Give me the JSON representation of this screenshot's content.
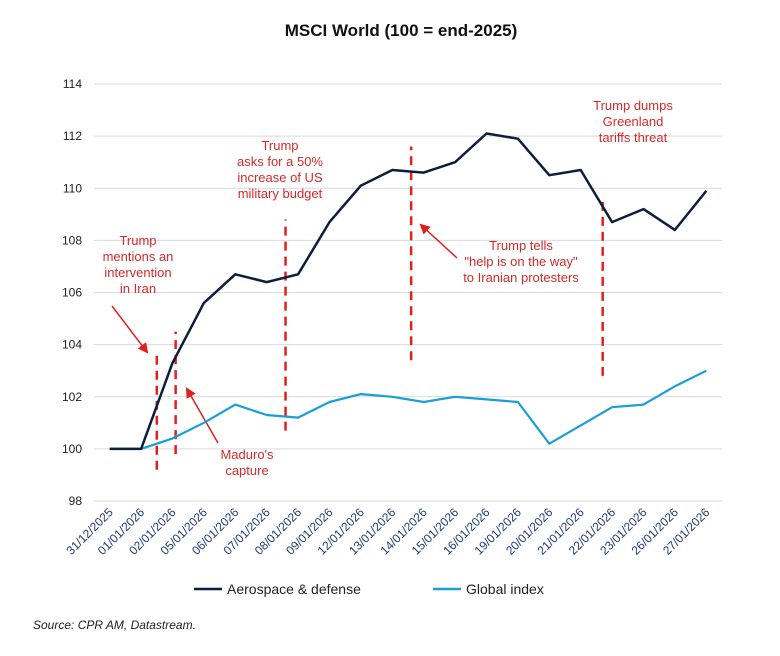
{
  "chart_data": {
    "type": "line",
    "title": "MSCI World (100 = end-2025)",
    "xlabel": "",
    "ylabel": "",
    "ylim": [
      98,
      114
    ],
    "yticks": [
      98,
      100,
      102,
      104,
      106,
      108,
      110,
      112,
      114
    ],
    "grid": true,
    "legend_position": "bottom",
    "categories": [
      "31/12/2025",
      "01/01/2026",
      "02/01/2026",
      "05/01/2026",
      "06/01/2026",
      "07/01/2026",
      "08/01/2026",
      "09/01/2026",
      "12/01/2026",
      "13/01/2026",
      "14/01/2026",
      "15/01/2026",
      "16/01/2026",
      "19/01/2026",
      "20/01/2026",
      "21/01/2026",
      "22/01/2026",
      "23/01/2026",
      "26/01/2026",
      "27/01/2026"
    ],
    "series": [
      {
        "name": "Aerospace & defense",
        "color": "#0d1e3d",
        "values": [
          100.0,
          100.0,
          103.3,
          105.6,
          106.7,
          106.4,
          106.7,
          108.7,
          110.1,
          110.7,
          110.6,
          111.0,
          112.1,
          111.9,
          110.5,
          110.7,
          108.7,
          109.2,
          108.4,
          109.9
        ]
      },
      {
        "name": "Global index",
        "color": "#199ed6",
        "values": [
          100.0,
          100.0,
          100.4,
          101.0,
          101.7,
          101.3,
          101.2,
          101.8,
          102.1,
          102.0,
          101.8,
          102.0,
          101.9,
          101.8,
          100.2,
          100.9,
          101.6,
          101.7,
          102.4,
          103.0
        ]
      }
    ],
    "events": [
      {
        "x_index": 1.5,
        "y_from": 99.2,
        "y_to": 103.7,
        "lines": [
          "Trump",
          "mentions an",
          "intervention",
          "in Iran"
        ]
      },
      {
        "x_index": 2.1,
        "y_from": 99.8,
        "y_to": 104.5,
        "lines": [
          "Maduro's",
          "capture"
        ]
      },
      {
        "x_index": 5.6,
        "y_from": 100.7,
        "y_to": 108.8,
        "lines": [
          "Trump",
          "asks for a 50%",
          "increase of US",
          "military budget"
        ]
      },
      {
        "x_index": 9.6,
        "y_from": 103.4,
        "y_to": 111.6,
        "lines": [
          "Trump tells",
          "\"help is on the way\"",
          "to Iranian protesters"
        ]
      },
      {
        "x_index": 15.7,
        "y_from": 102.8,
        "y_to": 109.5,
        "lines": [
          "Trump dumps",
          "Greenland",
          "tariffs threat"
        ]
      }
    ]
  },
  "source_text": "Source: CPR AM, Datastream."
}
